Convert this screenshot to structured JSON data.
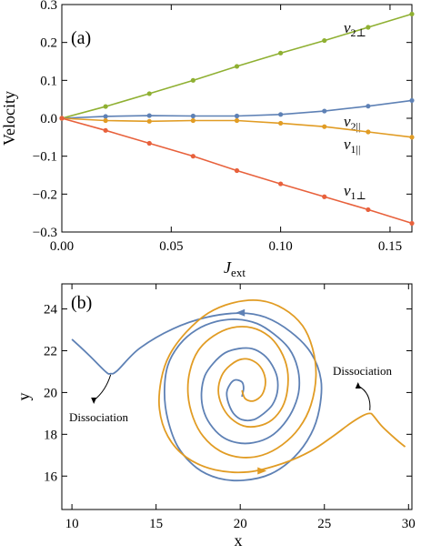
{
  "chart_data": [
    {
      "type": "line",
      "panel_label": "(a)",
      "xlabel": "J",
      "xlabel_sub": "ext",
      "ylabel": "Velocity",
      "xlim": [
        0,
        0.16
      ],
      "ylim": [
        -0.3,
        0.3
      ],
      "x_ticks": [
        "0.00",
        "0.05",
        "0.10",
        "0.15"
      ],
      "x_tick_values": [
        0,
        0.05,
        0.1,
        0.15
      ],
      "y_ticks": [
        "-0.3",
        "-0.2",
        "-0.1",
        "0.0",
        "0.1",
        "0.2",
        "0.3"
      ],
      "y_tick_values": [
        -0.3,
        -0.2,
        -0.1,
        0,
        0.1,
        0.2,
        0.3
      ],
      "x": [
        0,
        0.02,
        0.04,
        0.06,
        0.08,
        0.1,
        0.12,
        0.14,
        0.16
      ],
      "series": [
        {
          "name": "v",
          "sub": "2⊥",
          "color": "#8fb032",
          "values": [
            0,
            0.031,
            0.065,
            0.1,
            0.137,
            0.172,
            0.205,
            0.24,
            0.275
          ]
        },
        {
          "name": "v",
          "sub": "2||",
          "color": "#5e81b5",
          "values": [
            0,
            0.005,
            0.007,
            0.006,
            0.006,
            0.01,
            0.019,
            0.032,
            0.047
          ]
        },
        {
          "name": "v",
          "sub": "1||",
          "color": "#e19c24",
          "values": [
            0,
            -0.006,
            -0.008,
            -0.006,
            -0.006,
            -0.013,
            -0.022,
            -0.036,
            -0.05
          ]
        },
        {
          "name": "v",
          "sub": "1⊥",
          "color": "#e8613c",
          "values": [
            0,
            -0.032,
            -0.066,
            -0.1,
            -0.138,
            -0.173,
            -0.207,
            -0.241,
            -0.277
          ]
        }
      ]
    },
    {
      "type": "line",
      "panel_label": "(b)",
      "xlabel": "x",
      "ylabel": "y",
      "xlim": [
        9.4,
        30.2
      ],
      "ylim": [
        14.4,
        25.2
      ],
      "x_ticks": [
        "10",
        "15",
        "20",
        "25",
        "30"
      ],
      "x_tick_values": [
        10,
        15,
        20,
        25,
        30
      ],
      "y_ticks": [
        "16",
        "18",
        "20",
        "22",
        "24"
      ],
      "y_tick_values": [
        16,
        18,
        20,
        22,
        24
      ],
      "annotations": [
        "Dissociation",
        "Dissociation"
      ],
      "series": [
        {
          "color": "#5e81b5",
          "points": [
            [
              10,
              22.55
            ],
            [
              11,
              21.8
            ],
            [
              12,
              21
            ],
            [
              12.3,
              20.9
            ],
            [
              12.7,
              21.05
            ],
            [
              14,
              22.1
            ],
            [
              16,
              23.05
            ],
            [
              18,
              23.6
            ],
            [
              20,
              23.8
            ],
            [
              21.5,
              23.6
            ],
            [
              23,
              22.9
            ],
            [
              24.2,
              21.9
            ],
            [
              24.8,
              20.6
            ],
            [
              24.7,
              19.2
            ],
            [
              24.2,
              18
            ],
            [
              23.2,
              16.9
            ],
            [
              21.8,
              16.1
            ],
            [
              20.2,
              15.8
            ],
            [
              18.7,
              15.9
            ],
            [
              17.4,
              16.4
            ],
            [
              16.3,
              17.4
            ],
            [
              15.7,
              18.7
            ],
            [
              15.5,
              20
            ],
            [
              15.7,
              21.3
            ],
            [
              16.4,
              22.3
            ],
            [
              17.4,
              23
            ],
            [
              18.6,
              23.4
            ],
            [
              19.8,
              23.5
            ],
            [
              21,
              23.3
            ],
            [
              22,
              22.8
            ],
            [
              22.9,
              22.1
            ],
            [
              23.4,
              21.2
            ],
            [
              23.5,
              20.2
            ],
            [
              23.2,
              19.3
            ],
            [
              22.6,
              18.5
            ],
            [
              21.8,
              17.9
            ],
            [
              20.8,
              17.6
            ],
            [
              19.8,
              17.6
            ],
            [
              18.9,
              17.9
            ],
            [
              18.2,
              18.5
            ],
            [
              17.8,
              19.2
            ],
            [
              17.7,
              20
            ],
            [
              17.9,
              20.8
            ],
            [
              18.4,
              21.4
            ],
            [
              19.1,
              21.9
            ],
            [
              19.9,
              22.1
            ],
            [
              20.7,
              22.1
            ],
            [
              21.4,
              21.8
            ],
            [
              21.9,
              21.3
            ],
            [
              22.2,
              20.7
            ],
            [
              22.2,
              20
            ],
            [
              21.9,
              19.4
            ],
            [
              21.4,
              19
            ],
            [
              20.8,
              18.7
            ],
            [
              20.1,
              18.7
            ],
            [
              19.6,
              19
            ],
            [
              19.3,
              19.5
            ],
            [
              19.2,
              20
            ],
            [
              19.4,
              20.4
            ],
            [
              19.7,
              20.6
            ],
            [
              20.1,
              20.5
            ],
            [
              20.2,
              20.2
            ],
            [
              20.1,
              19.8
            ]
          ]
        },
        {
          "color": "#e19c24",
          "points": [
            [
              29.8,
              17.4
            ],
            [
              29.2,
              17.8
            ],
            [
              28.4,
              18.4
            ],
            [
              27.9,
              18.9
            ],
            [
              27.7,
              19
            ],
            [
              27.3,
              18.9
            ],
            [
              26.5,
              18.5
            ],
            [
              25.5,
              17.9
            ],
            [
              24.2,
              17.2
            ],
            [
              22.5,
              16.6
            ],
            [
              20.5,
              16.2
            ],
            [
              18.5,
              16.3
            ],
            [
              16.8,
              16.9
            ],
            [
              15.7,
              17.9
            ],
            [
              15.2,
              19.2
            ],
            [
              15.3,
              20.6
            ],
            [
              15.8,
              21.8
            ],
            [
              16.8,
              22.9
            ],
            [
              18.1,
              23.8
            ],
            [
              19.6,
              24.3
            ],
            [
              21.2,
              24.4
            ],
            [
              22.6,
              24
            ],
            [
              23.7,
              23.2
            ],
            [
              24.3,
              22.1
            ],
            [
              24.5,
              20.8
            ],
            [
              24.2,
              19.4
            ],
            [
              23.5,
              18.3
            ],
            [
              22.5,
              17.5
            ],
            [
              21.3,
              17
            ],
            [
              20,
              16.9
            ],
            [
              18.8,
              17.2
            ],
            [
              17.8,
              17.9
            ],
            [
              17.2,
              18.8
            ],
            [
              16.9,
              19.9
            ],
            [
              17,
              21
            ],
            [
              17.5,
              22
            ],
            [
              18.4,
              22.7
            ],
            [
              19.5,
              23.1
            ],
            [
              20.7,
              23.1
            ],
            [
              21.7,
              22.7
            ],
            [
              22.4,
              22
            ],
            [
              22.8,
              21.1
            ],
            [
              22.8,
              20.1
            ],
            [
              22.5,
              19.3
            ],
            [
              21.9,
              18.7
            ],
            [
              21.1,
              18.4
            ],
            [
              20.2,
              18.4
            ],
            [
              19.4,
              18.8
            ],
            [
              18.9,
              19.4
            ],
            [
              18.7,
              20.1
            ],
            [
              18.9,
              20.8
            ],
            [
              19.4,
              21.3
            ],
            [
              20.1,
              21.6
            ],
            [
              20.8,
              21.5
            ],
            [
              21.3,
              21.1
            ],
            [
              21.5,
              20.5
            ],
            [
              21.3,
              19.9
            ],
            [
              20.8,
              19.6
            ],
            [
              20.3,
              19.7
            ],
            [
              20.1,
              20.1
            ]
          ]
        }
      ]
    }
  ]
}
